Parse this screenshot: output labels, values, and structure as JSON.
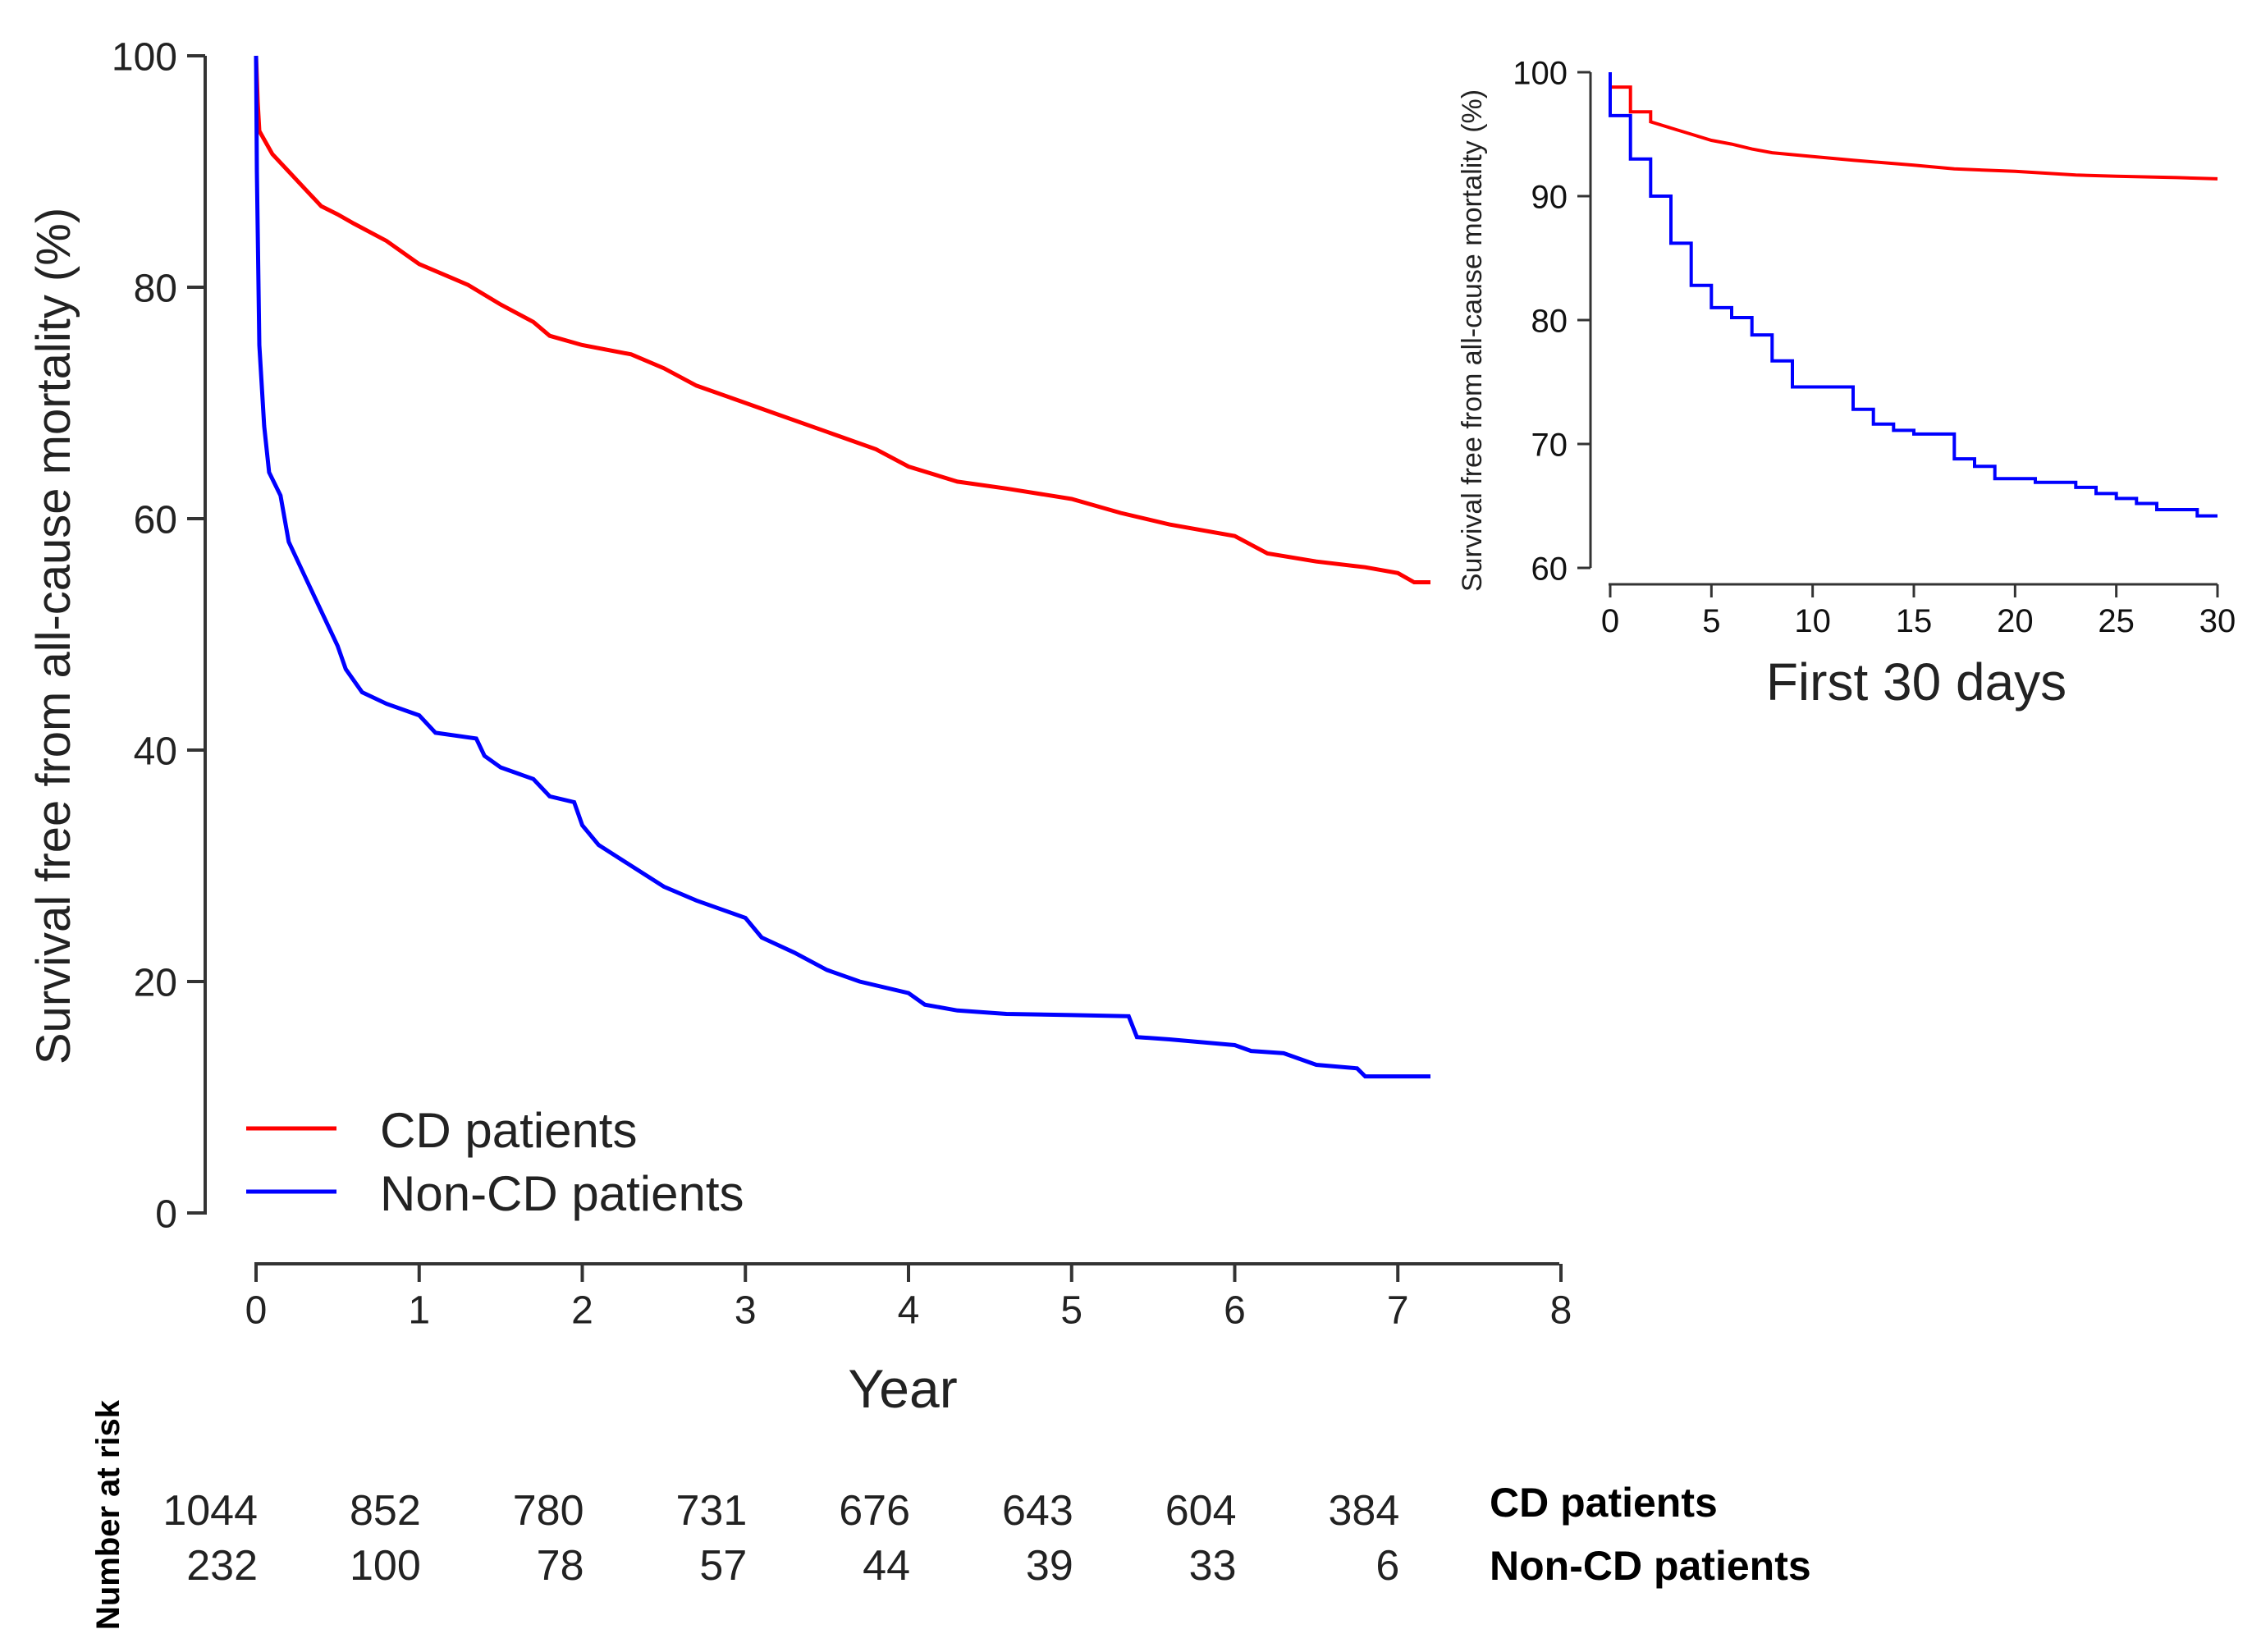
{
  "chart_data": [
    {
      "type": "line",
      "title": "",
      "xlabel": "Year",
      "ylabel": "Survival free from all-cause mortality (%)",
      "xlim": [
        0,
        8
      ],
      "ylim": [
        0,
        100
      ],
      "x_ticks": [
        "0",
        "1",
        "2",
        "3",
        "4",
        "5",
        "6",
        "7",
        "8"
      ],
      "y_ticks": [
        "0",
        "20",
        "40",
        "60",
        "80",
        "100"
      ],
      "grid": false,
      "legend_position": "bottom-left",
      "series": [
        {
          "name": "CD patients",
          "color": "#ff0000",
          "points": [
            [
              0,
              100
            ],
            [
              0.01,
              96
            ],
            [
              0.02,
              93.5
            ],
            [
              0.1,
              91.5
            ],
            [
              0.2,
              90
            ],
            [
              0.3,
              88.5
            ],
            [
              0.4,
              87
            ],
            [
              0.5,
              86.3
            ],
            [
              0.6,
              85.5
            ],
            [
              0.8,
              84
            ],
            [
              1.0,
              82
            ],
            [
              1.2,
              80.8
            ],
            [
              1.3,
              80.2
            ],
            [
              1.5,
              78.5
            ],
            [
              1.7,
              77
            ],
            [
              1.8,
              75.8
            ],
            [
              2.0,
              75
            ],
            [
              2.3,
              74.2
            ],
            [
              2.5,
              73
            ],
            [
              2.7,
              71.5
            ],
            [
              3.0,
              70
            ],
            [
              3.2,
              69
            ],
            [
              3.5,
              67.5
            ],
            [
              3.8,
              66
            ],
            [
              4.0,
              64.5
            ],
            [
              4.3,
              63.2
            ],
            [
              4.6,
              62.6
            ],
            [
              5.0,
              61.7
            ],
            [
              5.3,
              60.5
            ],
            [
              5.6,
              59.5
            ],
            [
              6.0,
              58.5
            ],
            [
              6.2,
              57
            ],
            [
              6.5,
              56.3
            ],
            [
              6.8,
              55.8
            ],
            [
              7.0,
              55.3
            ],
            [
              7.1,
              54.5
            ],
            [
              7.2,
              54.5
            ]
          ]
        },
        {
          "name": "Non-CD patients",
          "color": "#0000ff",
          "points": [
            [
              0,
              100
            ],
            [
              0.005,
              90
            ],
            [
              0.01,
              85
            ],
            [
              0.02,
              75
            ],
            [
              0.05,
              68
            ],
            [
              0.08,
              64
            ],
            [
              0.15,
              62
            ],
            [
              0.2,
              58
            ],
            [
              0.3,
              55
            ],
            [
              0.4,
              52
            ],
            [
              0.5,
              49
            ],
            [
              0.55,
              47
            ],
            [
              0.65,
              45
            ],
            [
              0.8,
              44
            ],
            [
              1.0,
              43
            ],
            [
              1.1,
              41.5
            ],
            [
              1.35,
              41
            ],
            [
              1.4,
              39.5
            ],
            [
              1.5,
              38.5
            ],
            [
              1.7,
              37.5
            ],
            [
              1.8,
              36
            ],
            [
              1.95,
              35.5
            ],
            [
              2.0,
              33.5
            ],
            [
              2.1,
              31.8
            ],
            [
              2.3,
              30
            ],
            [
              2.5,
              28.2
            ],
            [
              2.7,
              27
            ],
            [
              3.0,
              25.5
            ],
            [
              3.1,
              23.8
            ],
            [
              3.3,
              22.5
            ],
            [
              3.5,
              21
            ],
            [
              3.7,
              20
            ],
            [
              4.0,
              19
            ],
            [
              4.1,
              18
            ],
            [
              4.3,
              17.5
            ],
            [
              4.6,
              17.2
            ],
            [
              5.0,
              17.1
            ],
            [
              5.35,
              17
            ],
            [
              5.4,
              15.2
            ],
            [
              5.6,
              15
            ],
            [
              6.0,
              14.5
            ],
            [
              6.1,
              14
            ],
            [
              6.3,
              13.8
            ],
            [
              6.5,
              12.8
            ],
            [
              6.75,
              12.5
            ],
            [
              6.8,
              11.8
            ],
            [
              7.2,
              11.8
            ]
          ]
        }
      ],
      "number_at_risk": {
        "label": "Number at risk",
        "rows": [
          {
            "name": "CD patients",
            "values": [
              "1044",
              "852",
              "780",
              "731",
              "676",
              "643",
              "604",
              "384"
            ]
          },
          {
            "name": "Non-CD patients",
            "values": [
              "232",
              "100",
              "78",
              "57",
              "44",
              "39",
              "33",
              "6"
            ]
          }
        ]
      }
    },
    {
      "type": "line",
      "title": "First 30 days",
      "xlabel": "First 30 days",
      "ylabel": "Survival free from all-cause mortality (%)",
      "xlim": [
        0,
        30
      ],
      "ylim": [
        60,
        100
      ],
      "x_ticks": [
        "0",
        "5",
        "10",
        "15",
        "20",
        "25",
        "30"
      ],
      "y_ticks": [
        "60",
        "70",
        "80",
        "90",
        "100"
      ],
      "grid": false,
      "series": [
        {
          "name": "CD patients",
          "color": "#ff0000",
          "points": [
            [
              0,
              100
            ],
            [
              0,
              98.8
            ],
            [
              1,
              98.8
            ],
            [
              1,
              96.8
            ],
            [
              2,
              96.8
            ],
            [
              2,
              96
            ],
            [
              3,
              95.5
            ],
            [
              4,
              95
            ],
            [
              5,
              94.5
            ],
            [
              6,
              94.2
            ],
            [
              7,
              93.8
            ],
            [
              8,
              93.5
            ],
            [
              10,
              93.2
            ],
            [
              12,
              92.9
            ],
            [
              15,
              92.5
            ],
            [
              17,
              92.2
            ],
            [
              20,
              92
            ],
            [
              23,
              91.7
            ],
            [
              25,
              91.6
            ],
            [
              28,
              91.5
            ],
            [
              30,
              91.4
            ]
          ]
        },
        {
          "name": "Non-CD patients",
          "color": "#0000ff",
          "points": [
            [
              0,
              100
            ],
            [
              0,
              96.5
            ],
            [
              1,
              96.5
            ],
            [
              1,
              93
            ],
            [
              2,
              93
            ],
            [
              2,
              90
            ],
            [
              3,
              90
            ],
            [
              3,
              86.2
            ],
            [
              4,
              86.2
            ],
            [
              4,
              82.8
            ],
            [
              5,
              82.8
            ],
            [
              5,
              81
            ],
            [
              6,
              81
            ],
            [
              6,
              80.2
            ],
            [
              7,
              80.2
            ],
            [
              7,
              78.8
            ],
            [
              8,
              78.8
            ],
            [
              8,
              76.7
            ],
            [
              9,
              76.7
            ],
            [
              9,
              74.6
            ],
            [
              12,
              74.6
            ],
            [
              12,
              72.8
            ],
            [
              13,
              72.8
            ],
            [
              13,
              71.6
            ],
            [
              14,
              71.6
            ],
            [
              14,
              71.1
            ],
            [
              15,
              71.1
            ],
            [
              15,
              70.8
            ],
            [
              17,
              70.8
            ],
            [
              17,
              68.8
            ],
            [
              18,
              68.8
            ],
            [
              18,
              68.2
            ],
            [
              19,
              68.2
            ],
            [
              19,
              67.2
            ],
            [
              21,
              67.2
            ],
            [
              21,
              66.9
            ],
            [
              23,
              66.9
            ],
            [
              23,
              66.5
            ],
            [
              24,
              66.5
            ],
            [
              24,
              66
            ],
            [
              25,
              66
            ],
            [
              25,
              65.6
            ],
            [
              26,
              65.6
            ],
            [
              26,
              65.2
            ],
            [
              27,
              65.2
            ],
            [
              27,
              64.7
            ],
            [
              29,
              64.7
            ],
            [
              29,
              64.2
            ],
            [
              30,
              64.2
            ]
          ]
        }
      ]
    }
  ]
}
